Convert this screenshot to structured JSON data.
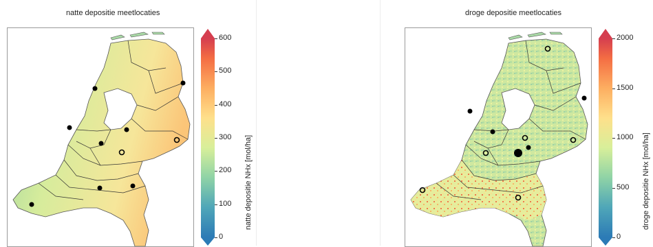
{
  "panels": [
    {
      "title": "natte depositie meetlocaties",
      "colorbar": {
        "label": "natte depositie NHx [mol/ha]",
        "min": 0,
        "max": 600,
        "ticks": [
          "0",
          "100",
          "200",
          "300",
          "400",
          "500",
          "600"
        ]
      },
      "stations": [
        {
          "type": "filled"
        },
        {
          "type": "filled"
        },
        {
          "type": "filled"
        },
        {
          "type": "filled"
        },
        {
          "type": "filled"
        },
        {
          "type": "filled"
        },
        {
          "type": "filled"
        },
        {
          "type": "filled"
        },
        {
          "type": "open"
        },
        {
          "type": "open"
        }
      ]
    },
    {
      "title": "droge depositie meetlocaties",
      "colorbar": {
        "label": "droge depositie NHx [mol/ha]",
        "min": 0,
        "max": 2000,
        "ticks": [
          "0",
          "500",
          "1000",
          "1500",
          "2000"
        ]
      },
      "stations": [
        {
          "type": "open"
        },
        {
          "type": "filled"
        },
        {
          "type": "filled"
        },
        {
          "type": "filled"
        },
        {
          "type": "open"
        },
        {
          "type": "filled"
        },
        {
          "type": "filled-large"
        },
        {
          "type": "open"
        },
        {
          "type": "open"
        },
        {
          "type": "open"
        },
        {
          "type": "open"
        }
      ]
    }
  ],
  "colors": {
    "scale": [
      "#2c7bb6",
      "#4fa6b8",
      "#8fd3a6",
      "#d8ef9a",
      "#fee08b",
      "#fdae61",
      "#f46d43",
      "#d53e4f"
    ],
    "land_wet": "#d9ea98",
    "land_dry": "#cfe6a0",
    "border": "#333333"
  }
}
